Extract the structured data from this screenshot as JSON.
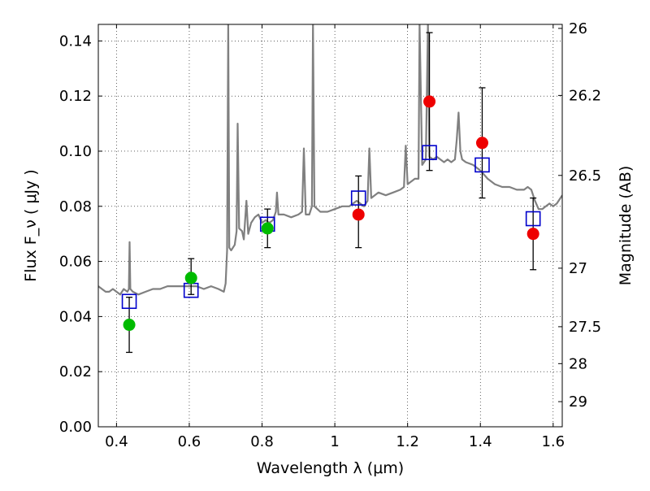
{
  "chart_data": {
    "type": "scatter",
    "xlabel": "Wavelength  λ (μm)",
    "ylabel": "Flux  F_ν  ( μJy )",
    "y2label": "Magnitude (AB)",
    "xlim": [
      0.35,
      1.625
    ],
    "ylim": [
      0.0,
      0.146
    ],
    "grid": true,
    "x_ticks": [
      "0.4",
      "0.6",
      "0.8",
      "1",
      "1.2",
      "1.4",
      "1.6"
    ],
    "y_ticks": [
      "0.00",
      "0.02",
      "0.04",
      "0.06",
      "0.08",
      "0.10",
      "0.12",
      "0.14"
    ],
    "y2_ticks": [
      {
        "label": "26",
        "mag": 26.0
      },
      {
        "label": "26.2",
        "mag": 26.2
      },
      {
        "label": "26.5",
        "mag": 26.5
      },
      {
        "label": "27",
        "mag": 27.0
      },
      {
        "label": "27.5",
        "mag": 27.5
      },
      {
        "label": "28",
        "mag": 28.0
      },
      {
        "label": "29",
        "mag": 29.0
      }
    ],
    "colors": {
      "spectrum": "#808080",
      "optical": "#00bb00",
      "nir": "#ee0000",
      "model": "#0000cc",
      "errorbar": "#000000"
    },
    "spectrum": [
      [
        0.35,
        0.051
      ],
      [
        0.36,
        0.05
      ],
      [
        0.37,
        0.049
      ],
      [
        0.38,
        0.049
      ],
      [
        0.39,
        0.05
      ],
      [
        0.4,
        0.049
      ],
      [
        0.41,
        0.048
      ],
      [
        0.42,
        0.05
      ],
      [
        0.43,
        0.049
      ],
      [
        0.434,
        0.05
      ],
      [
        0.436,
        0.067
      ],
      [
        0.438,
        0.05
      ],
      [
        0.445,
        0.049
      ],
      [
        0.46,
        0.048
      ],
      [
        0.48,
        0.049
      ],
      [
        0.5,
        0.05
      ],
      [
        0.52,
        0.05
      ],
      [
        0.54,
        0.051
      ],
      [
        0.56,
        0.051
      ],
      [
        0.58,
        0.051
      ],
      [
        0.6,
        0.051
      ],
      [
        0.62,
        0.051
      ],
      [
        0.64,
        0.05
      ],
      [
        0.66,
        0.051
      ],
      [
        0.68,
        0.05
      ],
      [
        0.695,
        0.049
      ],
      [
        0.7,
        0.052
      ],
      [
        0.704,
        0.064
      ],
      [
        0.707,
        0.146
      ],
      [
        0.71,
        0.065
      ],
      [
        0.715,
        0.064
      ],
      [
        0.725,
        0.066
      ],
      [
        0.73,
        0.071
      ],
      [
        0.733,
        0.11
      ],
      [
        0.737,
        0.072
      ],
      [
        0.745,
        0.071
      ],
      [
        0.75,
        0.068
      ],
      [
        0.757,
        0.082
      ],
      [
        0.762,
        0.07
      ],
      [
        0.77,
        0.074
      ],
      [
        0.78,
        0.076
      ],
      [
        0.79,
        0.077
      ],
      [
        0.8,
        0.074
      ],
      [
        0.81,
        0.075
      ],
      [
        0.82,
        0.074
      ],
      [
        0.83,
        0.075
      ],
      [
        0.838,
        0.078
      ],
      [
        0.841,
        0.085
      ],
      [
        0.845,
        0.077
      ],
      [
        0.86,
        0.077
      ],
      [
        0.88,
        0.076
      ],
      [
        0.9,
        0.077
      ],
      [
        0.91,
        0.078
      ],
      [
        0.915,
        0.101
      ],
      [
        0.92,
        0.077
      ],
      [
        0.93,
        0.077
      ],
      [
        0.937,
        0.08
      ],
      [
        0.94,
        0.146
      ],
      [
        0.944,
        0.08
      ],
      [
        0.96,
        0.078
      ],
      [
        0.98,
        0.078
      ],
      [
        1.0,
        0.079
      ],
      [
        1.02,
        0.08
      ],
      [
        1.04,
        0.08
      ],
      [
        1.06,
        0.082
      ],
      [
        1.08,
        0.08
      ],
      [
        1.09,
        0.082
      ],
      [
        1.095,
        0.101
      ],
      [
        1.1,
        0.083
      ],
      [
        1.12,
        0.085
      ],
      [
        1.14,
        0.084
      ],
      [
        1.16,
        0.085
      ],
      [
        1.18,
        0.086
      ],
      [
        1.19,
        0.087
      ],
      [
        1.195,
        0.102
      ],
      [
        1.2,
        0.088
      ],
      [
        1.21,
        0.089
      ],
      [
        1.22,
        0.09
      ],
      [
        1.23,
        0.09
      ],
      [
        1.233,
        0.146
      ],
      [
        1.24,
        0.095
      ],
      [
        1.25,
        0.097
      ],
      [
        1.256,
        0.146
      ],
      [
        1.26,
        0.098
      ],
      [
        1.27,
        0.097
      ],
      [
        1.28,
        0.098
      ],
      [
        1.29,
        0.097
      ],
      [
        1.3,
        0.096
      ],
      [
        1.31,
        0.097
      ],
      [
        1.32,
        0.096
      ],
      [
        1.33,
        0.097
      ],
      [
        1.335,
        0.104
      ],
      [
        1.34,
        0.114
      ],
      [
        1.345,
        0.1
      ],
      [
        1.35,
        0.097
      ],
      [
        1.36,
        0.096
      ],
      [
        1.38,
        0.095
      ],
      [
        1.4,
        0.093
      ],
      [
        1.42,
        0.09
      ],
      [
        1.44,
        0.088
      ],
      [
        1.46,
        0.087
      ],
      [
        1.48,
        0.087
      ],
      [
        1.5,
        0.086
      ],
      [
        1.52,
        0.086
      ],
      [
        1.53,
        0.087
      ],
      [
        1.54,
        0.086
      ],
      [
        1.55,
        0.082
      ],
      [
        1.56,
        0.079
      ],
      [
        1.57,
        0.079
      ],
      [
        1.58,
        0.08
      ],
      [
        1.59,
        0.081
      ],
      [
        1.6,
        0.08
      ],
      [
        1.61,
        0.081
      ],
      [
        1.625,
        0.084
      ]
    ],
    "photometry": [
      {
        "x": 0.435,
        "y": 0.037,
        "err": [
          0.027,
          0.047
        ],
        "group": "optical"
      },
      {
        "x": 0.605,
        "y": 0.054,
        "err": [
          0.048,
          0.061
        ],
        "group": "optical"
      },
      {
        "x": 0.815,
        "y": 0.072,
        "err": [
          0.065,
          0.079
        ],
        "group": "optical"
      },
      {
        "x": 1.065,
        "y": 0.077,
        "err": [
          0.065,
          0.091
        ],
        "group": "nir"
      },
      {
        "x": 1.26,
        "y": 0.118,
        "err": [
          0.093,
          0.143
        ],
        "group": "nir"
      },
      {
        "x": 1.405,
        "y": 0.103,
        "err": [
          0.083,
          0.123
        ],
        "group": "nir"
      },
      {
        "x": 1.545,
        "y": 0.07,
        "err": [
          0.057,
          0.083
        ],
        "group": "nir"
      }
    ],
    "model_points": [
      {
        "x": 0.435,
        "y": 0.0455
      },
      {
        "x": 0.605,
        "y": 0.0495
      },
      {
        "x": 0.815,
        "y": 0.0735
      },
      {
        "x": 1.065,
        "y": 0.083
      },
      {
        "x": 1.26,
        "y": 0.0995
      },
      {
        "x": 1.405,
        "y": 0.095
      },
      {
        "x": 1.545,
        "y": 0.0755
      }
    ]
  }
}
